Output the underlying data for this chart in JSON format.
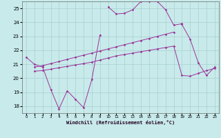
{
  "xlabel": "Windchill (Refroidissement éolien,°C)",
  "background_color": "#c8eaea",
  "grid_color": "#a8d0d0",
  "line_color": "#993399",
  "xlim": [
    -0.5,
    23.5
  ],
  "ylim": [
    17.5,
    25.5
  ],
  "yticks": [
    18,
    19,
    20,
    21,
    22,
    23,
    24,
    25
  ],
  "xticks": [
    0,
    1,
    2,
    3,
    4,
    5,
    6,
    7,
    8,
    9,
    10,
    11,
    12,
    13,
    14,
    15,
    16,
    17,
    18,
    19,
    20,
    21,
    22,
    23
  ],
  "line1_x": [
    0,
    1,
    2,
    3,
    4,
    5,
    6,
    7,
    8,
    9
  ],
  "line1_y": [
    21.5,
    21.0,
    20.8,
    19.2,
    17.8,
    19.1,
    18.5,
    17.9,
    19.9,
    23.1
  ],
  "line2_x": [
    10,
    11,
    12,
    13,
    14,
    15,
    16,
    17,
    18,
    19
  ],
  "line2_y": [
    25.1,
    24.6,
    24.65,
    24.9,
    25.5,
    25.5,
    25.5,
    24.9,
    23.8,
    23.9
  ],
  "line3_x": [
    1,
    2,
    3,
    4,
    5,
    6,
    7,
    8,
    9,
    10,
    11,
    12,
    13,
    14,
    15,
    16,
    17,
    18
  ],
  "line3_y": [
    20.8,
    20.9,
    21.05,
    21.2,
    21.35,
    21.5,
    21.65,
    21.8,
    21.95,
    22.1,
    22.25,
    22.4,
    22.55,
    22.7,
    22.85,
    23.0,
    23.15,
    23.3
  ],
  "line3b_x": [
    19,
    20,
    21,
    22,
    23
  ],
  "line3b_y": [
    23.85,
    22.8,
    21.1,
    20.2,
    20.8
  ],
  "line4_x": [
    1,
    2,
    3,
    4,
    5,
    6,
    7,
    8,
    9,
    10,
    11,
    12,
    13,
    14,
    15,
    16,
    17,
    18,
    19,
    20,
    21,
    22,
    23
  ],
  "line4_y": [
    20.5,
    20.55,
    20.65,
    20.75,
    20.85,
    20.95,
    21.05,
    21.15,
    21.3,
    21.45,
    21.6,
    21.7,
    21.8,
    21.9,
    22.0,
    22.1,
    22.2,
    22.3,
    20.2,
    20.15,
    20.35,
    20.55,
    20.7
  ]
}
